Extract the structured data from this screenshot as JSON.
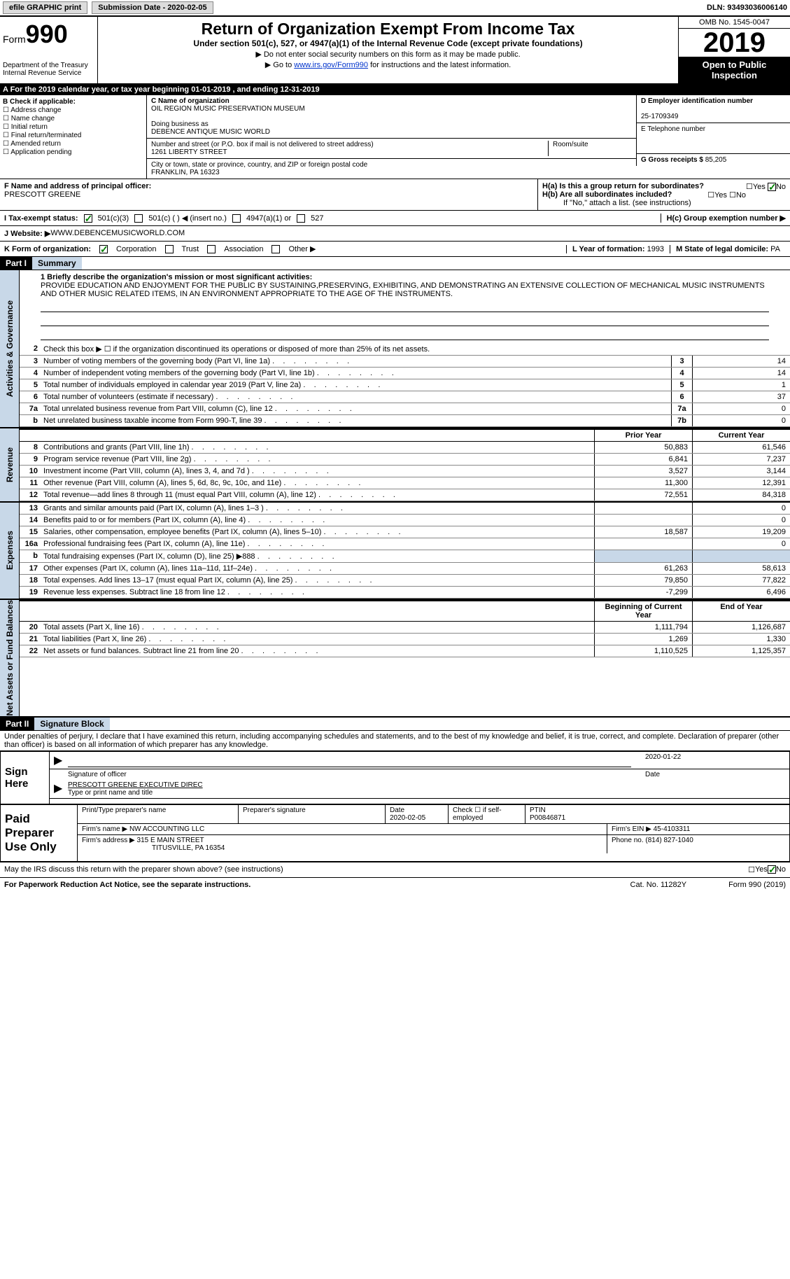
{
  "topbar": {
    "efile": "efile GRAPHIC print",
    "submission": "Submission Date - 2020-02-05",
    "dln": "DLN: 93493036006140"
  },
  "header": {
    "form": "Form",
    "num": "990",
    "dept": "Department of the Treasury\nInternal Revenue Service",
    "title": "Return of Organization Exempt From Income Tax",
    "subtitle": "Under section 501(c), 527, or 4947(a)(1) of the Internal Revenue Code (except private foundations)",
    "l1": "▶ Do not enter social security numbers on this form as it may be made public.",
    "l2_pre": "▶ Go to ",
    "l2_link": "www.irs.gov/Form990",
    "l2_post": " for instructions and the latest information.",
    "omb": "OMB No. 1545-0047",
    "year": "2019",
    "inspect": "Open to Public Inspection"
  },
  "barA": "A For the 2019 calendar year, or tax year beginning 01-01-2019   , and ending 12-31-2019",
  "B": {
    "hdr": "B Check if applicable:",
    "c1": "Address change",
    "c2": "Name change",
    "c3": "Initial return",
    "c4": "Final return/terminated",
    "c5": "Amended return",
    "c6": "Application pending"
  },
  "C": {
    "name_lbl": "C Name of organization",
    "name": "OIL REGION MUSIC PRESERVATION MUSEUM",
    "dba_lbl": "Doing business as",
    "dba": "DEBENCE ANTIQUE MUSIC WORLD",
    "street_lbl": "Number and street (or P.O. box if mail is not delivered to street address)",
    "street": "1261 LIBERTY STREET",
    "room_lbl": "Room/suite",
    "city_lbl": "City or town, state or province, country, and ZIP or foreign postal code",
    "city": "FRANKLIN, PA   16323"
  },
  "D": {
    "lbl": "D Employer identification number",
    "val": "25-1709349"
  },
  "E": {
    "lbl": "E Telephone number"
  },
  "G": {
    "lbl": "G Gross receipts $ ",
    "val": "85,205"
  },
  "F": {
    "lbl": "F  Name and address of principal officer:",
    "val": "PRESCOTT GREENE"
  },
  "H": {
    "a": "H(a)  Is this a group return for subordinates?",
    "b": "H(b)  Are all subordinates included?",
    "note": "If \"No,\" attach a list. (see instructions)",
    "c": "H(c)  Group exemption number ▶",
    "yes": "Yes",
    "no": "No"
  },
  "I": {
    "lbl": "I   Tax-exempt status:",
    "o1": "501(c)(3)",
    "o2": "501(c) (  ) ◀ (insert no.)",
    "o3": "4947(a)(1) or",
    "o4": "527"
  },
  "J": {
    "lbl": "J   Website: ▶",
    "val": " WWW.DEBENCEMUSICWORLD.COM"
  },
  "K": {
    "lbl": "K Form of organization:",
    "o1": "Corporation",
    "o2": "Trust",
    "o3": "Association",
    "o4": "Other ▶"
  },
  "L": {
    "lbl": "L Year of formation: ",
    "val": "1993"
  },
  "M": {
    "lbl": "M State of legal domicile: ",
    "val": "PA"
  },
  "part1": {
    "hdr": "Part I",
    "title": "Summary"
  },
  "mission": {
    "q": "1  Briefly describe the organization's mission or most significant activities:",
    "text": "PROVIDE EDUCATION AND ENJOYMENT FOR THE PUBLIC BY SUSTAINING,PRESERVING, EXHIBITING, AND DEMONSTRATING AN EXTENSIVE COLLECTION OF MECHANICAL MUSIC INSTRUMENTS AND OTHER MUSIC RELATED ITEMS, IN AN ENVIRONMENT APPROPRIATE TO THE AGE OF THE INSTRUMENTS."
  },
  "line2": "Check this box ▶ ☐  if the organization discontinued its operations or disposed of more than 25% of its net assets.",
  "lines_ag": [
    {
      "n": "3",
      "d": "Number of voting members of the governing body (Part VI, line 1a)",
      "b": "3",
      "v": "14"
    },
    {
      "n": "4",
      "d": "Number of independent voting members of the governing body (Part VI, line 1b)",
      "b": "4",
      "v": "14"
    },
    {
      "n": "5",
      "d": "Total number of individuals employed in calendar year 2019 (Part V, line 2a)",
      "b": "5",
      "v": "1"
    },
    {
      "n": "6",
      "d": "Total number of volunteers (estimate if necessary)",
      "b": "6",
      "v": "37"
    },
    {
      "n": "7a",
      "d": "Total unrelated business revenue from Part VIII, column (C), line 12",
      "b": "7a",
      "v": "0"
    },
    {
      "n": "b",
      "d": "Net unrelated business taxable income from Form 990-T, line 39",
      "b": "7b",
      "v": "0"
    }
  ],
  "hdr_py": "Prior Year",
  "hdr_cy": "Current Year",
  "rev": [
    {
      "n": "8",
      "d": "Contributions and grants (Part VIII, line 1h)",
      "p": "50,883",
      "c": "61,546"
    },
    {
      "n": "9",
      "d": "Program service revenue (Part VIII, line 2g)",
      "p": "6,841",
      "c": "7,237"
    },
    {
      "n": "10",
      "d": "Investment income (Part VIII, column (A), lines 3, 4, and 7d )",
      "p": "3,527",
      "c": "3,144"
    },
    {
      "n": "11",
      "d": "Other revenue (Part VIII, column (A), lines 5, 6d, 8c, 9c, 10c, and 11e)",
      "p": "11,300",
      "c": "12,391"
    },
    {
      "n": "12",
      "d": "Total revenue—add lines 8 through 11 (must equal Part VIII, column (A), line 12)",
      "p": "72,551",
      "c": "84,318"
    }
  ],
  "exp": [
    {
      "n": "13",
      "d": "Grants and similar amounts paid (Part IX, column (A), lines 1–3 )",
      "p": "",
      "c": "0"
    },
    {
      "n": "14",
      "d": "Benefits paid to or for members (Part IX, column (A), line 4)",
      "p": "",
      "c": "0"
    },
    {
      "n": "15",
      "d": "Salaries, other compensation, employee benefits (Part IX, column (A), lines 5–10)",
      "p": "18,587",
      "c": "19,209"
    },
    {
      "n": "16a",
      "d": "Professional fundraising fees (Part IX, column (A), line 11e)",
      "p": "",
      "c": "0"
    },
    {
      "n": "b",
      "d": "Total fundraising expenses (Part IX, column (D), line 25) ▶888",
      "p": "shaded",
      "c": "shaded"
    },
    {
      "n": "17",
      "d": "Other expenses (Part IX, column (A), lines 11a–11d, 11f–24e)",
      "p": "61,263",
      "c": "58,613"
    },
    {
      "n": "18",
      "d": "Total expenses. Add lines 13–17 (must equal Part IX, column (A), line 25)",
      "p": "79,850",
      "c": "77,822"
    },
    {
      "n": "19",
      "d": "Revenue less expenses. Subtract line 18 from line 12",
      "p": "-7,299",
      "c": "6,496"
    }
  ],
  "hdr_by": "Beginning of Current Year",
  "hdr_ey": "End of Year",
  "na": [
    {
      "n": "20",
      "d": "Total assets (Part X, line 16)",
      "p": "1,111,794",
      "c": "1,126,687"
    },
    {
      "n": "21",
      "d": "Total liabilities (Part X, line 26)",
      "p": "1,269",
      "c": "1,330"
    },
    {
      "n": "22",
      "d": "Net assets or fund balances. Subtract line 21 from line 20",
      "p": "1,110,525",
      "c": "1,125,357"
    }
  ],
  "side": {
    "ag": "Activities & Governance",
    "rev": "Revenue",
    "exp": "Expenses",
    "na": "Net Assets or Fund Balances"
  },
  "part2": {
    "hdr": "Part II",
    "title": "Signature Block"
  },
  "penalty": "Under penalties of perjury, I declare that I have examined this return, including accompanying schedules and statements, and to the best of my knowledge and belief, it is true, correct, and complete. Declaration of preparer (other than officer) is based on all information of which preparer has any knowledge.",
  "sign": {
    "here": "Sign Here",
    "sig_lbl": "Signature of officer",
    "date": "2020-01-22",
    "date_lbl": "Date",
    "name": "PRESCOTT GREENE  EXECUTIVE DIREC",
    "name_lbl": "Type or print name and title"
  },
  "prep": {
    "title": "Paid Preparer Use Only",
    "h1": "Print/Type preparer's name",
    "h2": "Preparer's signature",
    "h3": "Date",
    "h3v": "2020-02-05",
    "h4": "Check ☐ if self-employed",
    "h5": "PTIN",
    "h5v": "P00846871",
    "firm_lbl": "Firm's name    ▶",
    "firm": "NW ACCOUNTING LLC",
    "ein_lbl": "Firm's EIN ▶",
    "ein": "45-4103311",
    "addr_lbl": "Firm's address ▶",
    "addr": "315 E MAIN STREET",
    "addr2": "TITUSVILLE, PA  16354",
    "ph_lbl": "Phone no. ",
    "ph": "(814) 827-1040"
  },
  "may": "May the IRS discuss this return with the preparer shown above? (see instructions)",
  "footer": {
    "l": "For Paperwork Reduction Act Notice, see the separate instructions.",
    "m": "Cat. No. 11282Y",
    "r": "Form 990 (2019)"
  }
}
